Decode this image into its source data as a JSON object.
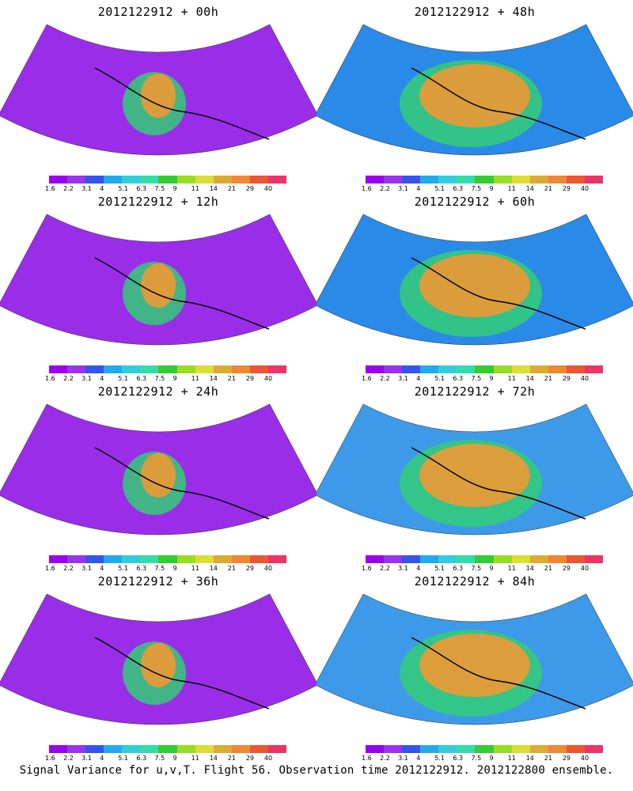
{
  "panels": [
    {
      "title": "2012122912 + 00h",
      "fill": "#9a2ee8"
    },
    {
      "title": "2012122912 + 48h",
      "fill": "#2a8ae8"
    },
    {
      "title": "2012122912 + 12h",
      "fill": "#9a2ee8"
    },
    {
      "title": "2012122912 + 60h",
      "fill": "#2a8ae8"
    },
    {
      "title": "2012122912 + 24h",
      "fill": "#9a2ee8"
    },
    {
      "title": "2012122912 + 72h",
      "fill": "#3d9ae8"
    },
    {
      "title": "2012122912 + 36h",
      "fill": "#9a2ee8"
    },
    {
      "title": "2012122912 + 84h",
      "fill": "#3d9ae8"
    }
  ],
  "colorbar": {
    "colors": [
      "#9900ee",
      "#9a33ee",
      "#3355ee",
      "#22aaee",
      "#33ccdd",
      "#33ddaa",
      "#33cc33",
      "#99dd22",
      "#dddd33",
      "#ddaa33",
      "#ee8833",
      "#ee5533",
      "#ee3366"
    ],
    "labels": [
      "1.6",
      "2.2",
      "3.1",
      "4",
      "5.1",
      "6.3",
      "7.5",
      "9",
      "11",
      "14",
      "21",
      "29",
      "40"
    ]
  },
  "caption": "Signal Variance for u,v,T. Flight 56. Observation time 2012122912. 2012122800 ensemble."
}
